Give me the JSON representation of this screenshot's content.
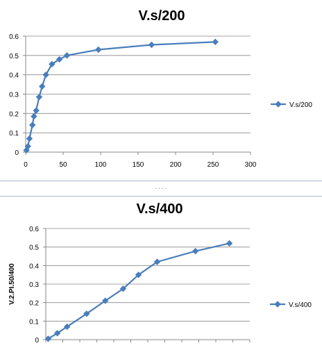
{
  "chart_data": [
    {
      "type": "scatter",
      "title": "V.s/200",
      "xlabel": "",
      "ylabel": "",
      "xlim": [
        0,
        300
      ],
      "ylim": [
        0,
        0.6
      ],
      "x_ticks": [
        0,
        50,
        100,
        150,
        200,
        250,
        300
      ],
      "y_ticks": [
        0,
        0.1,
        0.2,
        0.3,
        0.4,
        0.5,
        0.6
      ],
      "grid": "horizontal",
      "legend_position": "right",
      "series": [
        {
          "name": "V.s/200",
          "color": "#4a7ebb",
          "marker": "diamond",
          "line": "straight",
          "x": [
            1,
            3,
            5,
            9,
            11,
            14,
            18,
            22,
            27,
            35,
            45,
            55,
            97,
            168,
            253
          ],
          "y": [
            0.01,
            0.03,
            0.07,
            0.14,
            0.185,
            0.215,
            0.285,
            0.34,
            0.4,
            0.455,
            0.48,
            0.5,
            0.53,
            0.555,
            0.57
          ]
        }
      ]
    },
    {
      "type": "line",
      "title": "V.s/400",
      "xlabel": "",
      "ylabel": "V.2.PI.50/400",
      "ylim": [
        0,
        0.6
      ],
      "y_ticks": [
        0,
        0.1,
        0.2,
        0.3,
        0.4,
        0.5,
        0.6
      ],
      "grid": "horizontal",
      "legend_position": "right",
      "categories_count": 12,
      "series": [
        {
          "name": "V.s/400",
          "color": "#4a7ebb",
          "marker": "diamond",
          "line": "straight",
          "x": [
            0.14,
            0.68,
            1.25,
            2.4,
            3.5,
            4.55,
            5.45,
            6.55,
            8.8,
            10.8
          ],
          "values": [
            0.005,
            0.035,
            0.07,
            0.14,
            0.21,
            0.275,
            0.35,
            0.42,
            0.478,
            0.52
          ]
        }
      ]
    }
  ]
}
